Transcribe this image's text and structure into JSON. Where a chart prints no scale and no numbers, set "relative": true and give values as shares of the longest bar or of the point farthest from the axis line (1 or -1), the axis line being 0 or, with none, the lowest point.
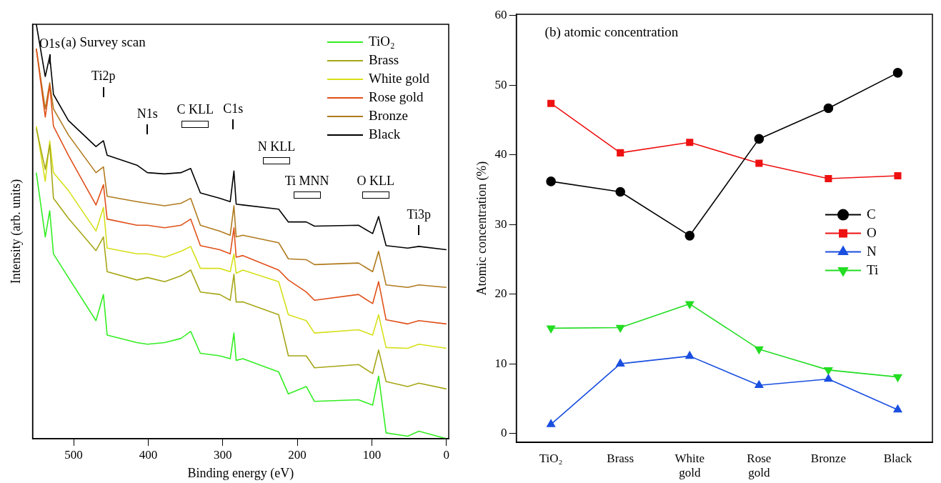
{
  "chart_data": [
    {
      "type": "line",
      "title": "(a) Survey scan",
      "xlabel": "Binding energy (eV)",
      "ylabel": "Intensity (arb. units)",
      "relative": true,
      "xlim": [
        555,
        -3
      ],
      "xticks": [
        500,
        400,
        300,
        200,
        100,
        0
      ],
      "tick_labels": "x",
      "grid": false,
      "legend": "top right",
      "marker": "none",
      "line_style": "solid",
      "x": [
        550,
        538,
        532,
        527,
        507,
        470,
        460,
        455,
        415,
        401,
        378,
        356,
        343,
        330,
        304,
        290,
        285,
        282,
        273,
        225,
        212,
        188,
        177,
        118,
        99,
        91,
        81,
        52,
        37,
        0
      ],
      "series": [
        {
          "name": "TiO₂",
          "color": "#33ee22",
          "values": [
            0.642,
            0.487,
            0.55,
            0.446,
            0.389,
            0.285,
            0.348,
            0.25,
            0.232,
            0.228,
            0.232,
            0.242,
            0.259,
            0.206,
            0.2,
            0.193,
            0.255,
            0.189,
            0.193,
            0.161,
            0.108,
            0.126,
            0.09,
            0.094,
            0.081,
            0.151,
            0.014,
            0.006,
            0.018,
            0
          ]
        },
        {
          "name": "Brass",
          "color": "#a6a617",
          "values": [
            0.749,
            0.65,
            0.709,
            0.58,
            0.532,
            0.454,
            0.487,
            0.403,
            0.383,
            0.389,
            0.379,
            0.393,
            0.407,
            0.354,
            0.348,
            0.334,
            0.397,
            0.33,
            0.33,
            0.299,
            0.2,
            0.2,
            0.171,
            0.179,
            0.157,
            0.214,
            0.138,
            0.126,
            0.134,
            0.12
          ]
        },
        {
          "name": "White gold",
          "color": "#d6e01a",
          "values": [
            0.754,
            0.621,
            0.719,
            0.642,
            0.599,
            0.501,
            0.558,
            0.46,
            0.446,
            0.446,
            0.438,
            0.452,
            0.464,
            0.411,
            0.411,
            0.403,
            0.446,
            0.399,
            0.407,
            0.379,
            0.299,
            0.285,
            0.255,
            0.263,
            0.25,
            0.299,
            0.22,
            0.218,
            0.228,
            0.218
          ]
        },
        {
          "name": "Rose gold",
          "color": "#e0501a",
          "values": [
            0.941,
            0.776,
            0.853,
            0.754,
            0.684,
            0.564,
            0.613,
            0.53,
            0.515,
            0.515,
            0.509,
            0.515,
            0.53,
            0.466,
            0.456,
            0.446,
            0.509,
            0.438,
            0.442,
            0.407,
            0.383,
            0.354,
            0.334,
            0.348,
            0.326,
            0.379,
            0.287,
            0.277,
            0.285,
            0.277
          ]
        },
        {
          "name": "Bronze",
          "color": "#b07a1e",
          "values": [
            0.941,
            0.796,
            0.859,
            0.796,
            0.733,
            0.642,
            0.656,
            0.585,
            0.572,
            0.568,
            0.562,
            0.568,
            0.58,
            0.515,
            0.501,
            0.491,
            0.562,
            0.487,
            0.491,
            0.473,
            0.434,
            0.432,
            0.42,
            0.424,
            0.403,
            0.452,
            0.371,
            0.365,
            0.371,
            0.365
          ]
        },
        {
          "name": "Black",
          "color": "#000000",
          "values": [
            1.0,
            0.874,
            0.923,
            0.831,
            0.768,
            0.705,
            0.719,
            0.684,
            0.66,
            0.642,
            0.639,
            0.642,
            0.652,
            0.593,
            0.58,
            0.572,
            0.646,
            0.566,
            0.564,
            0.554,
            0.523,
            0.523,
            0.513,
            0.515,
            0.495,
            0.536,
            0.466,
            0.46,
            0.464,
            0.456
          ]
        }
      ],
      "annotations": [
        "O1s",
        "Ti2p",
        "N1s",
        "C KLL",
        "C1s",
        "N KLL",
        "Ti MNN",
        "O KLL",
        "Ti3p"
      ]
    },
    {
      "type": "line",
      "title": "(b) atomic concentration",
      "ylabel": "Atomic concentration (%)",
      "categories": [
        "TiO₂",
        "Brass",
        "White gold",
        "Rose gold",
        "Bronze",
        "Black"
      ],
      "ylim": [
        -1.3,
        60.2
      ],
      "yticks": [
        0,
        10,
        20,
        30,
        40,
        50,
        60
      ],
      "grid": false,
      "legend": "right",
      "line_style": "solid",
      "series": [
        {
          "name": "C",
          "color": "#000000",
          "marker": "circle",
          "values": [
            36.2,
            34.7,
            28.4,
            42.3,
            46.7,
            51.8
          ]
        },
        {
          "name": "O",
          "color": "#ee1111",
          "marker": "square",
          "values": [
            47.4,
            40.3,
            41.8,
            38.8,
            36.6,
            37.0
          ]
        },
        {
          "name": "N",
          "color": "#1a4fe0",
          "marker": "triangle",
          "values": [
            1.3,
            10.0,
            11.1,
            6.9,
            7.8,
            3.4
          ]
        },
        {
          "name": "Ti",
          "color": "#22dd22",
          "marker": "triangle-down",
          "values": [
            15.1,
            15.2,
            18.6,
            12.1,
            9.1,
            8.1
          ]
        }
      ]
    }
  ]
}
